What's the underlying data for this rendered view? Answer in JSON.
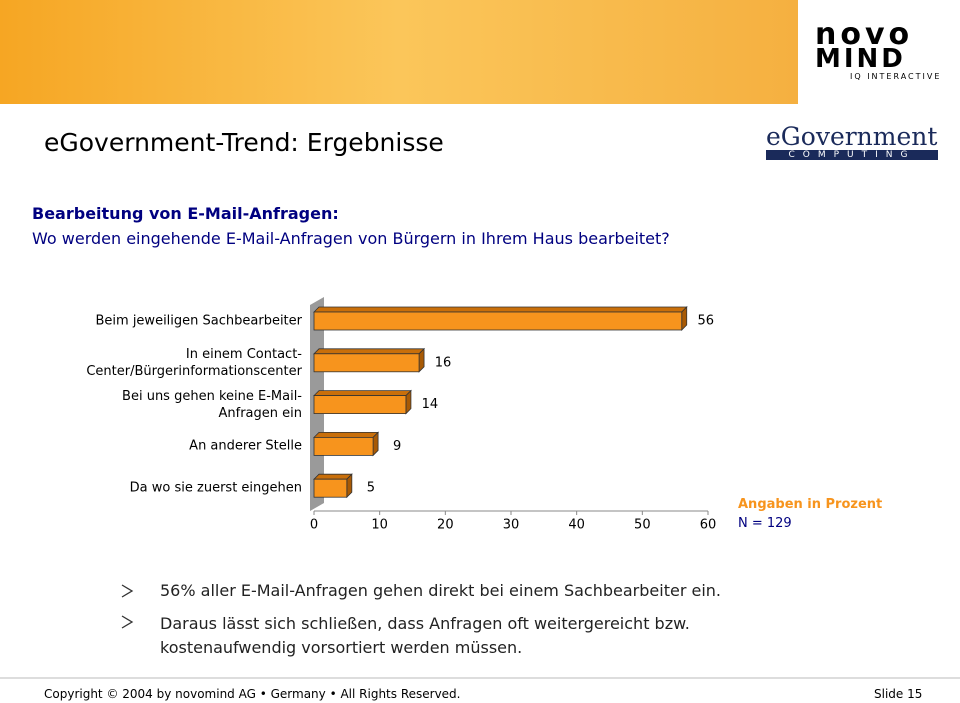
{
  "header": {
    "logo_top": "novo",
    "logo_bottom": "MIND",
    "logo_tagline": "IQ INTERACTIVE",
    "title": "eGovernment-Trend: Ergebnisse",
    "partner_logo": "eGovernment",
    "partner_tagline": "COMPUTING"
  },
  "chart_data": {
    "type": "bar",
    "orientation": "horizontal",
    "title": "Bearbeitung von E-Mail-Anfragen:",
    "subtitle": "Wo werden eingehende E-Mail-Anfragen von Bürgern in Ihrem Haus bearbeitet?",
    "categories": [
      "Beim jeweiligen Sachbearbeiter",
      "In einem Contact-\nCenter/Bürgerinformationscenter",
      "Bei uns gehen keine E-Mail-\nAnfragen ein",
      "An anderer Stelle",
      "Da wo sie zuerst eingehen"
    ],
    "values": [
      56,
      16,
      14,
      9,
      5
    ],
    "color": "#f7941d",
    "xlim": [
      0,
      60
    ],
    "xticks": [
      0,
      10,
      20,
      30,
      40,
      50,
      60
    ],
    "annotations": [
      "Angaben in Prozent",
      "N = 129"
    ]
  },
  "bullets": [
    "56% aller E-Mail-Anfragen gehen direkt bei einem Sachbearbeiter ein.",
    "Daraus lässt sich schließen, dass Anfragen oft weitergereicht bzw. kostenaufwendig vorsortiert werden müssen."
  ],
  "footer": {
    "copyright": "Copyright © 2004 by novomind AG • Germany • All Rights Reserved.",
    "slide": "Slide 15"
  }
}
